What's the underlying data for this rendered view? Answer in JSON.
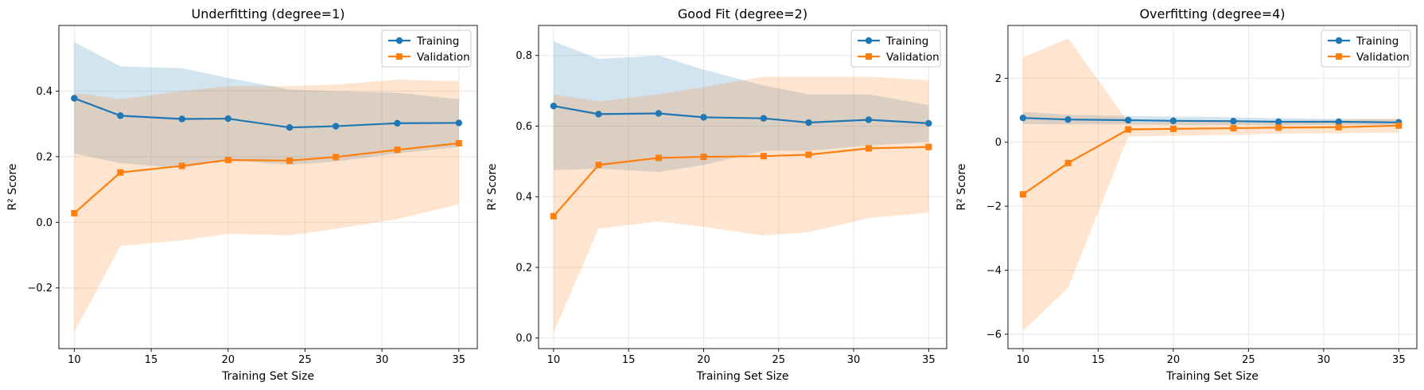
{
  "colors": {
    "training": "#1f77b4",
    "validation": "#ff7f0e",
    "training_band": "#1f77b4",
    "validation_band": "#ff7f0e",
    "grid": "#e6e6e6"
  },
  "legend": {
    "training": "Training",
    "validation": "Validation"
  },
  "chart_data": [
    {
      "type": "line",
      "title": "Underfitting (degree=1)",
      "xlabel": "Training Set Size",
      "ylabel": "R² Score",
      "xlim": [
        9,
        36.2
      ],
      "ylim": [
        -0.385,
        0.6
      ],
      "xticks": [
        10,
        15,
        20,
        25,
        30,
        35
      ],
      "xtick_labels": [
        "10",
        "15",
        "20",
        "25",
        "30",
        "35"
      ],
      "yticks": [
        -0.2,
        0.0,
        0.2,
        0.4
      ],
      "ytick_labels": [
        "−0.2",
        "0.0",
        "0.2",
        "0.4"
      ],
      "legend_position": "top-right",
      "grid": true,
      "x": [
        10,
        13,
        17,
        20,
        24,
        27,
        31,
        35
      ],
      "series": [
        {
          "name": "Training",
          "marker": "circle",
          "values": [
            0.378,
            0.325,
            0.315,
            0.316,
            0.289,
            0.293,
            0.302,
            0.303
          ],
          "upper": [
            0.55,
            0.475,
            0.47,
            0.44,
            0.405,
            0.4,
            0.395,
            0.375
          ],
          "lower": [
            0.21,
            0.18,
            0.165,
            0.19,
            0.175,
            0.185,
            0.21,
            0.23
          ]
        },
        {
          "name": "Validation",
          "marker": "square",
          "values": [
            0.028,
            0.152,
            0.172,
            0.19,
            0.188,
            0.199,
            0.221,
            0.241
          ],
          "upper": [
            0.395,
            0.375,
            0.4,
            0.415,
            0.415,
            0.42,
            0.435,
            0.43
          ],
          "lower": [
            -0.335,
            -0.072,
            -0.055,
            -0.035,
            -0.04,
            -0.02,
            0.01,
            0.055
          ]
        }
      ]
    },
    {
      "type": "line",
      "title": "Good Fit (degree=2)",
      "xlabel": "Training Set Size",
      "ylabel": "R² Score",
      "xlim": [
        9,
        36.2
      ],
      "ylim": [
        -0.03,
        0.885
      ],
      "xticks": [
        10,
        15,
        20,
        25,
        30,
        35
      ],
      "xtick_labels": [
        "10",
        "15",
        "20",
        "25",
        "30",
        "35"
      ],
      "yticks": [
        0.0,
        0.2,
        0.4,
        0.6,
        0.8
      ],
      "ytick_labels": [
        "0.0",
        "0.2",
        "0.4",
        "0.6",
        "0.8"
      ],
      "legend_position": "top-right",
      "grid": true,
      "x": [
        10,
        13,
        17,
        20,
        24,
        27,
        31,
        35
      ],
      "series": [
        {
          "name": "Training",
          "marker": "circle",
          "values": [
            0.657,
            0.634,
            0.636,
            0.625,
            0.622,
            0.61,
            0.618,
            0.608
          ],
          "upper": [
            0.84,
            0.79,
            0.8,
            0.76,
            0.715,
            0.69,
            0.69,
            0.66
          ],
          "lower": [
            0.475,
            0.48,
            0.47,
            0.49,
            0.53,
            0.53,
            0.545,
            0.555
          ]
        },
        {
          "name": "Validation",
          "marker": "square",
          "values": [
            0.345,
            0.49,
            0.51,
            0.513,
            0.515,
            0.519,
            0.537,
            0.541
          ],
          "upper": [
            0.69,
            0.67,
            0.69,
            0.71,
            0.74,
            0.74,
            0.74,
            0.73
          ],
          "lower": [
            0.015,
            0.31,
            0.33,
            0.315,
            0.29,
            0.3,
            0.34,
            0.355
          ]
        }
      ]
    },
    {
      "type": "line",
      "title": "Overfitting (degree=4)",
      "xlabel": "Training Set Size",
      "ylabel": "R² Score",
      "xlim": [
        9,
        36.2
      ],
      "ylim": [
        -6.45,
        3.65
      ],
      "xticks": [
        10,
        15,
        20,
        25,
        30,
        35
      ],
      "xtick_labels": [
        "10",
        "15",
        "20",
        "25",
        "30",
        "35"
      ],
      "yticks": [
        -6,
        -4,
        -2,
        0,
        2
      ],
      "ytick_labels": [
        "−6",
        "−4",
        "−2",
        "0",
        "2"
      ],
      "legend_position": "top-right",
      "grid": true,
      "x": [
        10,
        13,
        17,
        20,
        24,
        27,
        31,
        35
      ],
      "series": [
        {
          "name": "Training",
          "marker": "circle",
          "values": [
            0.76,
            0.71,
            0.69,
            0.67,
            0.66,
            0.64,
            0.64,
            0.62
          ],
          "upper": [
            0.95,
            0.86,
            0.82,
            0.8,
            0.78,
            0.75,
            0.73,
            0.71
          ],
          "lower": [
            0.57,
            0.56,
            0.56,
            0.54,
            0.54,
            0.53,
            0.55,
            0.53
          ]
        },
        {
          "name": "Validation",
          "marker": "square",
          "values": [
            -1.63,
            -0.65,
            0.4,
            0.42,
            0.44,
            0.46,
            0.47,
            0.52
          ],
          "upper": [
            2.65,
            3.25,
            0.62,
            0.64,
            0.64,
            0.66,
            0.7,
            0.75
          ],
          "lower": [
            -5.9,
            -4.55,
            0.18,
            0.2,
            0.23,
            0.27,
            0.28,
            0.3
          ]
        }
      ]
    }
  ]
}
